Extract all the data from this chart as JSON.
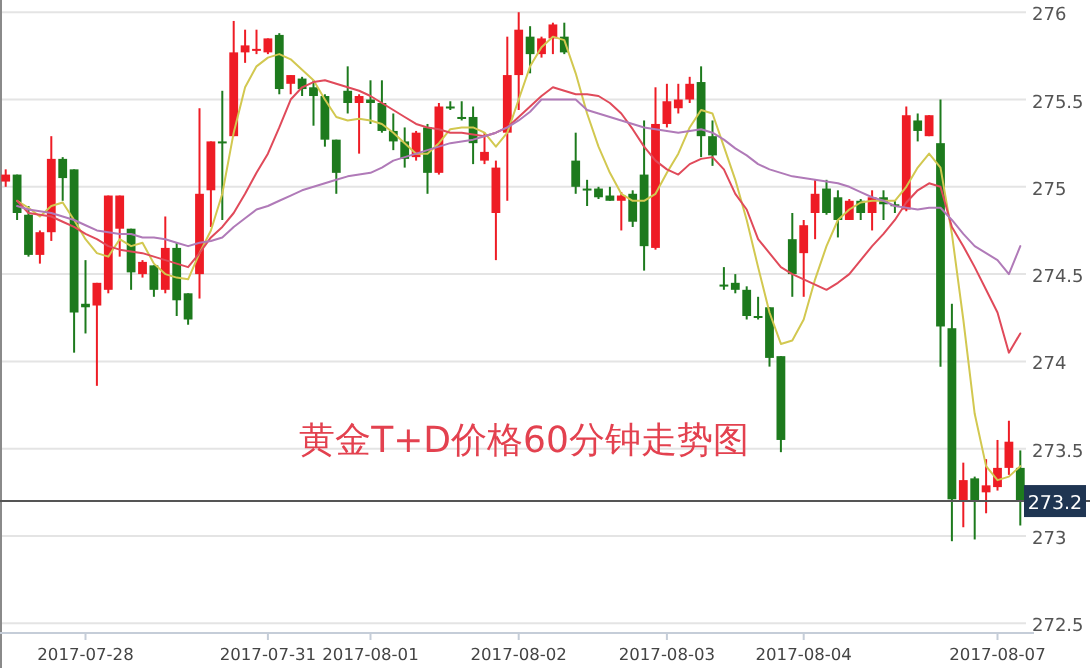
{
  "chart_data": {
    "type": "candlestick",
    "title": "黄金T+D价格60分钟走势图",
    "categories": [
      null,
      null,
      null,
      null,
      null,
      null,
      null,
      "2017-07-28",
      null,
      null,
      null,
      null,
      null,
      null,
      null,
      null,
      null,
      null,
      null,
      null,
      null,
      null,
      null,
      "2017-07-31",
      null,
      null,
      null,
      null,
      null,
      null,
      null,
      null,
      "2017-08-01",
      null,
      null,
      null,
      null,
      null,
      null,
      null,
      null,
      null,
      null,
      null,
      null,
      "2017-08-02",
      null,
      null,
      null,
      null,
      null,
      null,
      null,
      null,
      null,
      null,
      null,
      null,
      "2017-08-03",
      null,
      null,
      null,
      null,
      null,
      null,
      null,
      null,
      null,
      null,
      null,
      "2017-08-04",
      null,
      null,
      null,
      null,
      null,
      null,
      null,
      null,
      null,
      null,
      null,
      null,
      null,
      null,
      null,
      null,
      "2017-08-07",
      null,
      null
    ],
    "ohlc": [
      [
        275.03,
        275.1,
        275.0,
        275.07
      ],
      [
        275.07,
        275.07,
        274.81,
        274.85
      ],
      [
        274.84,
        274.89,
        274.6,
        274.61
      ],
      [
        274.61,
        274.75,
        274.56,
        274.74
      ],
      [
        274.74,
        275.29,
        274.69,
        275.16
      ],
      [
        275.16,
        275.17,
        274.92,
        275.05
      ],
      [
        275.1,
        275.1,
        274.05,
        274.28
      ],
      [
        274.33,
        274.58,
        274.16,
        274.31
      ],
      [
        274.32,
        274.45,
        273.86,
        274.45
      ],
      [
        274.41,
        274.95,
        274.39,
        274.95
      ],
      [
        274.76,
        274.95,
        274.6,
        274.95
      ],
      [
        274.76,
        274.76,
        274.41,
        274.51
      ],
      [
        274.5,
        274.58,
        274.48,
        274.57
      ],
      [
        274.55,
        274.55,
        274.37,
        274.41
      ],
      [
        274.41,
        274.83,
        274.39,
        274.65
      ],
      [
        274.65,
        274.68,
        274.26,
        274.35
      ],
      [
        274.39,
        274.39,
        274.21,
        274.24
      ],
      [
        274.5,
        275.45,
        274.36,
        274.96
      ],
      [
        274.98,
        275.26,
        274.77,
        275.26
      ],
      [
        275.26,
        275.55,
        274.81,
        275.25
      ],
      [
        275.29,
        275.95,
        275.29,
        275.77
      ],
      [
        275.77,
        275.9,
        275.71,
        275.81
      ],
      [
        275.78,
        275.9,
        275.76,
        275.79
      ],
      [
        275.77,
        275.85,
        275.76,
        275.85
      ],
      [
        275.87,
        275.88,
        275.53,
        275.56
      ],
      [
        275.59,
        275.64,
        275.53,
        275.64
      ],
      [
        275.62,
        275.63,
        275.52,
        275.56
      ],
      [
        275.57,
        275.61,
        275.35,
        275.52
      ],
      [
        275.52,
        275.53,
        275.23,
        275.27
      ],
      [
        275.27,
        275.27,
        274.96,
        275.08
      ],
      [
        275.55,
        275.69,
        275.42,
        275.48
      ],
      [
        275.48,
        275.53,
        275.19,
        275.52
      ],
      [
        275.5,
        275.61,
        275.36,
        275.48
      ],
      [
        275.48,
        275.61,
        275.31,
        275.32
      ],
      [
        275.32,
        275.42,
        275.21,
        275.26
      ],
      [
        275.26,
        275.34,
        275.11,
        275.16
      ],
      [
        275.17,
        275.32,
        275.15,
        275.31
      ],
      [
        275.34,
        275.36,
        274.96,
        275.08
      ],
      [
        275.08,
        275.48,
        275.07,
        275.46
      ],
      [
        275.46,
        275.49,
        275.44,
        275.45
      ],
      [
        275.4,
        275.49,
        275.38,
        275.39
      ],
      [
        275.4,
        275.46,
        275.13,
        275.25
      ],
      [
        275.15,
        275.31,
        275.13,
        275.2
      ],
      [
        274.85,
        275.15,
        274.58,
        275.11
      ],
      [
        275.31,
        275.86,
        274.92,
        275.64
      ],
      [
        275.64,
        276.0,
        275.44,
        275.9
      ],
      [
        275.86,
        275.92,
        275.65,
        275.76
      ],
      [
        275.76,
        275.86,
        275.74,
        275.85
      ],
      [
        275.85,
        275.94,
        275.76,
        275.93
      ],
      [
        275.86,
        275.94,
        275.76,
        275.77
      ],
      [
        275.15,
        275.31,
        274.96,
        275.0
      ],
      [
        274.99,
        275.04,
        274.89,
        274.98
      ],
      [
        274.99,
        275.0,
        274.93,
        274.94
      ],
      [
        274.95,
        275.0,
        274.92,
        274.92
      ],
      [
        274.92,
        274.97,
        274.75,
        274.95
      ],
      [
        274.96,
        274.98,
        274.77,
        274.8
      ],
      [
        275.07,
        275.38,
        274.52,
        274.66
      ],
      [
        274.65,
        275.57,
        274.64,
        275.36
      ],
      [
        275.36,
        275.59,
        275.34,
        275.49
      ],
      [
        275.45,
        275.59,
        275.42,
        275.5
      ],
      [
        275.5,
        275.63,
        275.48,
        275.59
      ],
      [
        275.6,
        275.69,
        275.17,
        275.29
      ],
      [
        275.29,
        275.38,
        275.12,
        275.18
      ],
      [
        274.44,
        274.54,
        274.41,
        274.43
      ],
      [
        274.45,
        274.5,
        274.39,
        274.41
      ],
      [
        274.41,
        274.43,
        274.24,
        274.26
      ],
      [
        274.26,
        274.37,
        274.24,
        274.25
      ],
      [
        274.31,
        274.31,
        273.97,
        274.02
      ],
      [
        274.03,
        274.03,
        273.48,
        273.55
      ],
      [
        274.7,
        274.85,
        274.37,
        274.5
      ],
      [
        274.62,
        274.81,
        274.37,
        274.78
      ],
      [
        274.85,
        275.04,
        274.7,
        274.96
      ],
      [
        274.99,
        275.04,
        274.84,
        274.85
      ],
      [
        274.94,
        274.98,
        274.71,
        274.81
      ],
      [
        274.81,
        274.93,
        274.81,
        274.92
      ],
      [
        274.92,
        274.93,
        274.81,
        274.85
      ],
      [
        274.85,
        274.98,
        274.75,
        274.94
      ],
      [
        274.94,
        274.98,
        274.81,
        274.9
      ],
      [
        274.9,
        274.92,
        274.85,
        274.89
      ],
      [
        274.87,
        275.46,
        274.86,
        275.41
      ],
      [
        275.38,
        275.42,
        275.26,
        275.32
      ],
      [
        275.29,
        275.41,
        275.29,
        275.41
      ],
      [
        275.25,
        275.5,
        273.97,
        274.2
      ],
      [
        274.19,
        274.33,
        272.97,
        273.21
      ],
      [
        273.2,
        273.42,
        273.05,
        273.32
      ],
      [
        273.33,
        273.34,
        272.98,
        273.2
      ],
      [
        273.25,
        273.44,
        273.13,
        273.29
      ],
      [
        273.28,
        273.55,
        273.26,
        273.39
      ],
      [
        273.39,
        273.66,
        273.35,
        273.54
      ],
      [
        273.39,
        273.49,
        273.06,
        273.2
      ]
    ],
    "colors": [
      "#ee1c25",
      "#1d7a1d",
      "#1d7a1d",
      "#ee1c25",
      "#ee1c25",
      "#1d7a1d",
      "#1d7a1d",
      "#1d7a1d",
      "#ee1c25",
      "#ee1c25",
      "#ee1c25",
      "#1d7a1d",
      "#ee1c25",
      "#1d7a1d",
      "#ee1c25",
      "#1d7a1d",
      "#1d7a1d",
      "#ee1c25",
      "#ee1c25",
      "#1d7a1d",
      "#ee1c25",
      "#ee1c25",
      "#ee1c25",
      "#ee1c25",
      "#1d7a1d",
      "#ee1c25",
      "#1d7a1d",
      "#1d7a1d",
      "#1d7a1d",
      "#1d7a1d",
      "#1d7a1d",
      "#ee1c25",
      "#1d7a1d",
      "#1d7a1d",
      "#1d7a1d",
      "#1d7a1d",
      "#ee1c25",
      "#1d7a1d",
      "#ee1c25",
      "#1d7a1d",
      "#1d7a1d",
      "#1d7a1d",
      "#ee1c25",
      "#ee1c25",
      "#ee1c25",
      "#ee1c25",
      "#1d7a1d",
      "#ee1c25",
      "#ee1c25",
      "#1d7a1d",
      "#1d7a1d",
      "#1d7a1d",
      "#1d7a1d",
      "#1d7a1d",
      "#ee1c25",
      "#1d7a1d",
      "#1d7a1d",
      "#ee1c25",
      "#ee1c25",
      "#ee1c25",
      "#ee1c25",
      "#1d7a1d",
      "#1d7a1d",
      "#1d7a1d",
      "#1d7a1d",
      "#1d7a1d",
      "#1d7a1d",
      "#1d7a1d",
      "#1d7a1d",
      "#1d7a1d",
      "#ee1c25",
      "#ee1c25",
      "#1d7a1d",
      "#1d7a1d",
      "#ee1c25",
      "#1d7a1d",
      "#ee1c25",
      "#1d7a1d",
      "#1d7a1d",
      "#ee1c25",
      "#1d7a1d",
      "#ee1c25",
      "#1d7a1d",
      "#1d7a1d",
      "#ee1c25",
      "#1d7a1d",
      "#ee1c25",
      "#ee1c25",
      "#ee1c25",
      "#1d7a1d"
    ],
    "series": [
      {
        "type": "line",
        "color": "#d2c850",
        "values": [
          null,
          274.92,
          274.88,
          274.83,
          274.89,
          274.91,
          274.81,
          274.7,
          274.62,
          274.6,
          274.7,
          274.66,
          274.68,
          274.56,
          274.5,
          274.48,
          274.47,
          274.62,
          274.75,
          274.96,
          275.31,
          275.57,
          275.69,
          275.74,
          275.76,
          275.73,
          275.67,
          275.61,
          275.5,
          275.4,
          275.38,
          275.39,
          275.38,
          275.36,
          275.31,
          275.25,
          275.19,
          275.19,
          275.25,
          275.33,
          275.34,
          275.34,
          275.31,
          275.23,
          275.31,
          275.5,
          275.69,
          275.8,
          275.86,
          275.84,
          275.65,
          275.42,
          275.23,
          275.08,
          274.96,
          274.92,
          274.92,
          274.96,
          275.08,
          275.19,
          275.34,
          275.44,
          275.42,
          275.23,
          275.04,
          274.81,
          274.54,
          274.28,
          274.1,
          274.12,
          274.24,
          274.47,
          274.66,
          274.81,
          274.87,
          274.91,
          274.92,
          274.92,
          274.92,
          275.0,
          275.11,
          275.19,
          275.11,
          274.73,
          274.24,
          273.7,
          273.4,
          273.32,
          273.34,
          273.4
        ]
      },
      {
        "type": "line",
        "color": "#e04a5a",
        "values": [
          null,
          274.92,
          274.85,
          274.84,
          274.83,
          274.8,
          274.77,
          274.73,
          274.7,
          274.66,
          274.64,
          274.63,
          274.62,
          274.6,
          274.58,
          274.56,
          274.54,
          274.62,
          274.71,
          274.77,
          274.85,
          274.96,
          275.08,
          275.19,
          275.34,
          275.5,
          275.57,
          275.6,
          275.61,
          275.59,
          275.57,
          275.55,
          275.52,
          275.48,
          275.44,
          275.4,
          275.36,
          275.34,
          275.33,
          275.31,
          275.31,
          275.3,
          275.29,
          275.31,
          275.34,
          275.4,
          275.46,
          275.52,
          275.57,
          275.55,
          275.53,
          275.53,
          275.52,
          275.48,
          275.42,
          275.33,
          275.23,
          275.15,
          275.1,
          275.07,
          275.13,
          275.16,
          275.17,
          275.1,
          274.96,
          274.87,
          274.7,
          274.62,
          274.54,
          274.5,
          274.47,
          274.44,
          274.41,
          274.45,
          274.5,
          274.58,
          274.66,
          274.73,
          274.81,
          274.91,
          274.98,
          275.02,
          275.0,
          274.77,
          274.66,
          274.54,
          274.41,
          274.28,
          274.05,
          274.16
        ]
      },
      {
        "type": "line",
        "color": "#b07ab8",
        "values": [
          null,
          274.89,
          274.87,
          274.86,
          274.85,
          274.83,
          274.81,
          274.78,
          274.75,
          274.74,
          274.73,
          274.73,
          274.71,
          274.71,
          274.7,
          274.68,
          274.66,
          274.68,
          274.69,
          274.71,
          274.77,
          274.82,
          274.87,
          274.89,
          274.92,
          274.95,
          274.98,
          275.0,
          275.02,
          275.04,
          275.06,
          275.07,
          275.08,
          275.11,
          275.15,
          275.17,
          275.19,
          275.21,
          275.23,
          275.25,
          275.26,
          275.27,
          275.29,
          275.31,
          275.34,
          275.38,
          275.43,
          275.5,
          275.5,
          275.5,
          275.5,
          275.44,
          275.42,
          275.4,
          275.38,
          275.36,
          275.34,
          275.33,
          275.32,
          275.31,
          275.32,
          275.33,
          275.31,
          275.27,
          275.22,
          275.18,
          275.13,
          275.1,
          275.08,
          275.06,
          275.05,
          275.04,
          275.03,
          275.02,
          275.0,
          274.97,
          274.94,
          274.92,
          274.89,
          274.88,
          274.87,
          274.88,
          274.88,
          274.81,
          274.73,
          274.66,
          274.62,
          274.58,
          274.5,
          274.66
        ]
      }
    ],
    "ylim": [
      272.45,
      276.07
    ],
    "yticks": [
      272.5,
      273,
      273.5,
      274,
      274.5,
      275,
      275.5,
      276
    ],
    "grid": "y",
    "ref_lines": [
      {
        "axis": "y",
        "value": 273.2,
        "label": "273.2",
        "color": "#555555"
      }
    ]
  }
}
